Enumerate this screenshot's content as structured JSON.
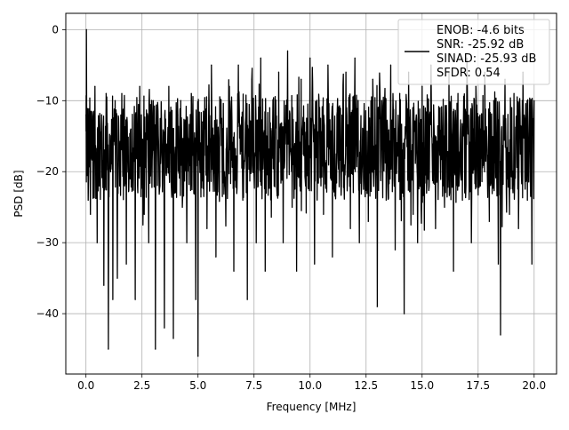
{
  "chart_data": {
    "type": "line",
    "title": "",
    "xlabel": "Frequency [MHz]",
    "ylabel": "PSD [dB]",
    "xlim": [
      -0.9,
      21.0
    ],
    "ylim": [
      -48.5,
      2.3
    ],
    "xticks": [
      0.0,
      2.5,
      5.0,
      7.5,
      10.0,
      12.5,
      15.0,
      17.5,
      20.0
    ],
    "xtick_labels": [
      "0.0",
      "2.5",
      "5.0",
      "7.5",
      "10.0",
      "12.5",
      "15.0",
      "17.5",
      "20.0"
    ],
    "yticks": [
      0,
      -10,
      -20,
      -30,
      -40
    ],
    "ytick_labels": [
      "0",
      "−10",
      "−20",
      "−30",
      "−40"
    ],
    "grid": true,
    "legend_placement": "top-right",
    "legend_lines": [
      "ENOB: -4.6 bits",
      "SNR: -25.92 dB",
      "SINAD: -25.93 dB",
      "SFDR: 0.54"
    ],
    "series": [
      {
        "color": "#000000",
        "description_values_note": "dense noise floor spectrum approx -8 to -26 dB with peak at 0 MHz",
        "peaks": [
          [
            0.02,
            0.0
          ]
        ],
        "x": [
          0.0,
          0.02,
          0.1,
          0.2,
          0.3,
          0.4,
          0.5,
          0.6,
          0.7,
          0.8,
          0.9,
          1.0,
          1.1,
          1.2,
          1.3,
          1.4,
          1.5,
          1.6,
          1.8,
          2.0,
          2.2,
          2.4,
          2.6,
          2.8,
          3.0,
          3.1,
          3.3,
          3.5,
          3.7,
          3.9,
          4.1,
          4.3,
          4.5,
          4.7,
          4.9,
          5.0,
          5.2,
          5.4,
          5.6,
          5.8,
          6.0,
          6.2,
          6.4,
          6.6,
          6.8,
          7.0,
          7.2,
          7.4,
          7.6,
          7.8,
          8.0,
          8.2,
          8.4,
          8.6,
          8.8,
          9.0,
          9.2,
          9.4,
          9.6,
          9.8,
          10.0,
          10.2,
          10.4,
          10.6,
          10.8,
          11.0,
          11.2,
          11.4,
          11.6,
          11.8,
          12.0,
          12.2,
          12.4,
          12.6,
          12.8,
          13.0,
          13.2,
          13.4,
          13.6,
          13.8,
          14.0,
          14.2,
          14.4,
          14.6,
          14.8,
          15.0,
          15.2,
          15.4,
          15.6,
          15.8,
          16.0,
          16.2,
          16.4,
          16.6,
          16.8,
          17.0,
          17.2,
          17.4,
          17.6,
          17.8,
          18.0,
          18.2,
          18.4,
          18.5,
          18.7,
          18.9,
          19.1,
          19.3,
          19.5,
          19.7,
          19.9,
          20.0
        ],
        "y": [
          -12.0,
          0.0,
          -24.0,
          -26.0,
          -14.0,
          -8.0,
          -30.0,
          -22.0,
          -12.0,
          -36.0,
          -9.0,
          -45.0,
          -20.0,
          -38.0,
          -10.0,
          -35.0,
          -22.0,
          -9.0,
          -33.0,
          -14.0,
          -38.0,
          -8.0,
          -26.0,
          -30.0,
          -10.0,
          -45.0,
          -22.0,
          -42.0,
          -8.0,
          -43.5,
          -12.0,
          -25.0,
          -30.0,
          -9.0,
          -38.0,
          -46.0,
          -13.0,
          -28.0,
          -5.0,
          -32.0,
          -10.0,
          -22.0,
          -8.0,
          -34.0,
          -5.0,
          -24.0,
          -38.0,
          -7.0,
          -30.0,
          -4.0,
          -34.0,
          -11.0,
          -22.0,
          -6.0,
          -30.0,
          -3.0,
          -25.0,
          -34.0,
          -7.0,
          -22.0,
          -4.0,
          -33.0,
          -10.0,
          -26.0,
          -5.0,
          -32.0,
          -12.0,
          -22.0,
          -6.0,
          -28.0,
          -4.0,
          -30.0,
          -14.0,
          -27.0,
          -7.0,
          -39.0,
          -10.0,
          -24.0,
          -5.0,
          -31.0,
          -9.0,
          -40.0,
          -6.0,
          -26.0,
          -30.0,
          -8.0,
          -23.0,
          -5.0,
          -28.0,
          -11.0,
          -25.0,
          -6.0,
          -34.0,
          -9.0,
          -24.0,
          -4.0,
          -30.0,
          -8.0,
          -22.0,
          -6.0,
          -27.0,
          -10.0,
          -33.0,
          -43.0,
          -7.0,
          -26.0,
          -9.0,
          -28.0,
          -6.0,
          -24.0,
          -33.0,
          -10.0
        ]
      }
    ]
  }
}
